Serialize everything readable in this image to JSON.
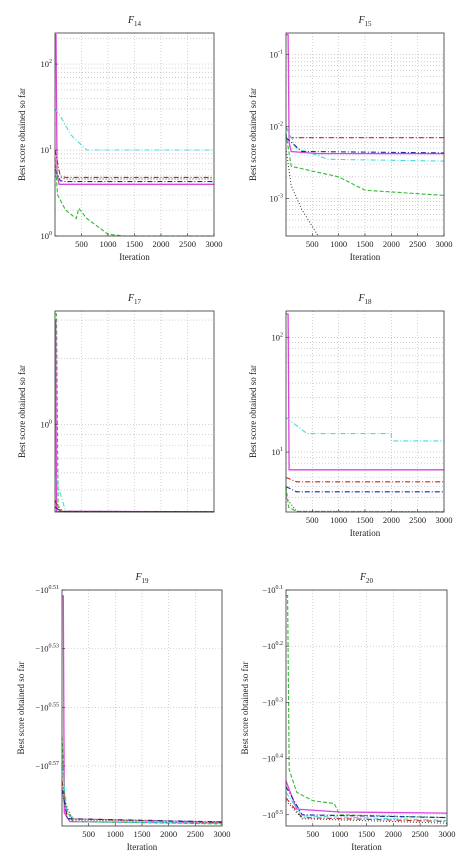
{
  "chart_data": [
    {
      "id": "f14",
      "type": "line",
      "title_main": "F",
      "title_sub": "14",
      "xlabel": "Iteration",
      "ylabel": "Best score obtained so far",
      "yscale": "log",
      "xlim": [
        1,
        3000
      ],
      "ylim": [
        1,
        230
      ],
      "grid": true,
      "xticks": [
        500,
        1000,
        1500,
        2000,
        2500,
        3000
      ],
      "yticks": [
        {
          "v": 1,
          "base": "10",
          "exp": "0"
        },
        {
          "v": 10,
          "base": "10",
          "exp": "1"
        },
        {
          "v": 100,
          "base": "10",
          "exp": "2"
        }
      ],
      "series": [
        {
          "color": "#dd44dd",
          "dash": "solid",
          "points": [
            [
              1,
              220
            ],
            [
              20,
              220
            ],
            [
              40,
              5
            ],
            [
              80,
              4.0
            ],
            [
              3000,
              4.0
            ]
          ]
        },
        {
          "color": "#44dddd",
          "dash": "dashdot",
          "points": [
            [
              1,
              30
            ],
            [
              100,
              25
            ],
            [
              300,
              15
            ],
            [
              600,
              10
            ],
            [
              3000,
              10
            ]
          ]
        },
        {
          "color": "#cc2222",
          "dash": "dashdot",
          "points": [
            [
              1,
              10
            ],
            [
              100,
              5
            ],
            [
              200,
              4.8
            ],
            [
              3000,
              4.8
            ]
          ]
        },
        {
          "color": "#2222aa",
          "dash": "dashdot",
          "points": [
            [
              1,
              6
            ],
            [
              100,
              4.4
            ],
            [
              200,
              4.3
            ],
            [
              3000,
              4.3
            ]
          ]
        },
        {
          "color": "#444444",
          "dash": "dotted",
          "points": [
            [
              1,
              5
            ],
            [
              200,
              4.6
            ],
            [
              3000,
              4.6
            ]
          ]
        },
        {
          "color": "#33bb33",
          "dash": "dashed",
          "points": [
            [
              1,
              8
            ],
            [
              50,
              3
            ],
            [
              200,
              2
            ],
            [
              400,
              1.6
            ],
            [
              450,
              2.1
            ],
            [
              600,
              1.6
            ],
            [
              1000,
              1.05
            ],
            [
              1300,
              1.0
            ],
            [
              3000,
              1.0
            ]
          ]
        }
      ]
    },
    {
      "id": "f15",
      "type": "line",
      "title_main": "F",
      "title_sub": "15",
      "xlabel": "Iteration",
      "ylabel": "Best score obtained so far",
      "yscale": "log",
      "xlim": [
        1,
        3000
      ],
      "ylim": [
        0.0003,
        0.2
      ],
      "grid": true,
      "xticks": [
        500,
        1000,
        1500,
        2000,
        2500,
        3000
      ],
      "yticks": [
        {
          "v": 0.001,
          "base": "10",
          "exp": "-3"
        },
        {
          "v": 0.01,
          "base": "10",
          "exp": "-2"
        },
        {
          "v": 0.1,
          "base": "10",
          "exp": "-1"
        }
      ],
      "series": [
        {
          "color": "#dd44dd",
          "dash": "solid",
          "points": [
            [
              1,
              0.19
            ],
            [
              40,
              0.19
            ],
            [
              60,
              0.006
            ],
            [
              100,
              0.0045
            ],
            [
              600,
              0.0042
            ],
            [
              3000,
              0.0042
            ]
          ]
        },
        {
          "color": "#cc2222",
          "dash": "dashdot",
          "points": [
            [
              1,
              0.01
            ],
            [
              100,
              0.007
            ],
            [
              3000,
              0.007
            ]
          ]
        },
        {
          "color": "#44dddd",
          "dash": "dashdot",
          "points": [
            [
              1,
              0.01
            ],
            [
              200,
              0.005
            ],
            [
              800,
              0.0035
            ],
            [
              3000,
              0.0033
            ]
          ]
        },
        {
          "color": "#2222aa",
          "dash": "dashdot",
          "points": [
            [
              1,
              0.007
            ],
            [
              300,
              0.0045
            ],
            [
              3000,
              0.0043
            ]
          ]
        },
        {
          "color": "#33bb33",
          "dash": "dashed",
          "points": [
            [
              1,
              0.008
            ],
            [
              100,
              0.0028
            ],
            [
              500,
              0.0024
            ],
            [
              1000,
              0.002
            ],
            [
              1500,
              0.0013
            ],
            [
              3000,
              0.0011
            ]
          ]
        },
        {
          "color": "#444444",
          "dash": "dotted",
          "points": [
            [
              1,
              0.005
            ],
            [
              100,
              0.0015
            ],
            [
              300,
              0.0007
            ],
            [
              600,
              0.00031
            ]
          ]
        }
      ]
    },
    {
      "id": "f17",
      "type": "line",
      "title_main": "F",
      "title_sub": "17",
      "xlabel": "",
      "ylabel": "Best score obtained so far",
      "yscale": "log",
      "xlim": [
        1,
        3000
      ],
      "ylim": [
        0.397,
        3.3
      ],
      "grid": true,
      "xticks": [],
      "yticks": [
        {
          "v": 1,
          "base": "10",
          "exp": "0"
        }
      ],
      "series": [
        {
          "color": "#33bb33",
          "dash": "dashed",
          "points": [
            [
              1,
              3.2
            ],
            [
              30,
              3.2
            ],
            [
              60,
              0.41
            ],
            [
              150,
              0.398
            ],
            [
              3000,
              0.398
            ]
          ]
        },
        {
          "color": "#dd44dd",
          "dash": "solid",
          "points": [
            [
              1,
              3.0
            ],
            [
              15,
              3.0
            ],
            [
              30,
              0.4
            ],
            [
              3000,
              0.398
            ]
          ]
        },
        {
          "color": "#44dddd",
          "dash": "dashdot",
          "points": [
            [
              1,
              0.6
            ],
            [
              60,
              0.52
            ],
            [
              200,
              0.4
            ],
            [
              3000,
              0.398
            ]
          ]
        },
        {
          "color": "#cc2222",
          "dash": "dashdot",
          "points": [
            [
              1,
              0.45
            ],
            [
              100,
              0.4
            ],
            [
              3000,
              0.398
            ]
          ]
        },
        {
          "color": "#2222aa",
          "dash": "dashdot",
          "points": [
            [
              1,
              0.42
            ],
            [
              100,
              0.399
            ],
            [
              3000,
              0.398
            ]
          ]
        },
        {
          "color": "#444444",
          "dash": "dotted",
          "points": [
            [
              1,
              0.44
            ],
            [
              150,
              0.399
            ],
            [
              3000,
              0.398
            ]
          ]
        }
      ]
    },
    {
      "id": "f18",
      "type": "line",
      "title_main": "F",
      "title_sub": "18",
      "xlabel": "Iteration",
      "ylabel": "Best score obtained so far",
      "yscale": "log",
      "xlim": [
        1,
        3000
      ],
      "ylim": [
        3,
        170
      ],
      "grid": true,
      "xticks": [
        500,
        1000,
        1500,
        2000,
        2500,
        3000
      ],
      "yticks": [
        {
          "v": 10,
          "base": "10",
          "exp": "1"
        },
        {
          "v": 100,
          "base": "10",
          "exp": "2"
        }
      ],
      "series": [
        {
          "color": "#dd44dd",
          "dash": "solid",
          "points": [
            [
              1,
              160
            ],
            [
              40,
              160
            ],
            [
              60,
              7.0
            ],
            [
              3000,
              7.0
            ]
          ]
        },
        {
          "color": "#44dddd",
          "dash": "dashdot",
          "points": [
            [
              1,
              20
            ],
            [
              200,
              17
            ],
            [
              400,
              14.5
            ],
            [
              2000,
              14.5
            ],
            [
              2000,
              12.5
            ],
            [
              3000,
              12.5
            ]
          ]
        },
        {
          "color": "#cc2222",
          "dash": "dashdot",
          "points": [
            [
              1,
              6
            ],
            [
              200,
              5.5
            ],
            [
              3000,
              5.5
            ]
          ]
        },
        {
          "color": "#2222aa",
          "dash": "dashdot",
          "points": [
            [
              1,
              5
            ],
            [
              200,
              4.5
            ],
            [
              3000,
              4.5
            ]
          ]
        },
        {
          "color": "#444444",
          "dash": "dotted",
          "points": [
            [
              1,
              4
            ],
            [
              200,
              3.05
            ],
            [
              3000,
              3.02
            ]
          ]
        },
        {
          "color": "#33bb33",
          "dash": "dashed",
          "points": [
            [
              1,
              5
            ],
            [
              50,
              3.3
            ],
            [
              200,
              3.03
            ],
            [
              3000,
              3.0
            ]
          ]
        }
      ]
    },
    {
      "id": "f19",
      "type": "line",
      "title_main": "F",
      "title_sub": "19",
      "xlabel": "Iteration",
      "ylabel": "Best score obtained so far",
      "yscale": "log-negative",
      "xlim": [
        1,
        3000
      ],
      "ylim": [
        0.51,
        0.5905
      ],
      "grid": true,
      "xticks": [
        500,
        1000,
        1500,
        2000,
        2500,
        3000
      ],
      "yticks": [
        {
          "v": 0.51,
          "base": "−10",
          "exp": "0.51"
        },
        {
          "v": 0.53,
          "base": "−10",
          "exp": "0.53"
        },
        {
          "v": 0.55,
          "base": "−10",
          "exp": "0.55"
        },
        {
          "v": 0.57,
          "base": "−10",
          "exp": "0.57"
        }
      ],
      "series": [
        {
          "color": "#dd44dd",
          "dash": "solid",
          "points": [
            [
              1,
              0.512
            ],
            [
              25,
              0.512
            ],
            [
              45,
              0.586
            ],
            [
              150,
              0.589
            ],
            [
              3000,
              0.5895
            ]
          ]
        },
        {
          "color": "#33bb33",
          "dash": "dashed",
          "points": [
            [
              1,
              0.56
            ],
            [
              60,
              0.584
            ],
            [
              200,
              0.589
            ],
            [
              3000,
              0.5898
            ]
          ]
        },
        {
          "color": "#44dddd",
          "dash": "dashdot",
          "points": [
            [
              1,
              0.57
            ],
            [
              100,
              0.586
            ],
            [
              300,
              0.589
            ],
            [
              3000,
              0.5895
            ]
          ]
        },
        {
          "color": "#cc2222",
          "dash": "dashdot",
          "points": [
            [
              1,
              0.575
            ],
            [
              100,
              0.588
            ],
            [
              3000,
              0.5893
            ]
          ]
        },
        {
          "color": "#2222aa",
          "dash": "dashdot",
          "points": [
            [
              1,
              0.578
            ],
            [
              100,
              0.588
            ],
            [
              3000,
              0.5891
            ]
          ]
        },
        {
          "color": "#444444",
          "dash": "dotted",
          "points": [
            [
              1,
              0.58
            ],
            [
              200,
              0.5885
            ],
            [
              3000,
              0.589
            ]
          ]
        }
      ]
    },
    {
      "id": "f20",
      "type": "line",
      "title_main": "F",
      "title_sub": "20",
      "xlabel": "Iteration",
      "ylabel": "Best score obtained so far",
      "yscale": "log-negative",
      "xlim": [
        1,
        3000
      ],
      "ylim": [
        0.1,
        0.52
      ],
      "grid": true,
      "xticks": [
        500,
        1000,
        1500,
        2000,
        2500,
        3000
      ],
      "yticks": [
        {
          "v": 0.1,
          "base": "−10",
          "exp": "0.1"
        },
        {
          "v": 0.2,
          "base": "−10",
          "exp": "0.2"
        },
        {
          "v": 0.3,
          "base": "−10",
          "exp": "0.3"
        },
        {
          "v": 0.4,
          "base": "−10",
          "exp": "0.4"
        },
        {
          "v": 0.5,
          "base": "−10",
          "exp": "0.5"
        }
      ],
      "series": [
        {
          "color": "#33bb33",
          "dash": "dashed",
          "points": [
            [
              1,
              0.11
            ],
            [
              30,
              0.11
            ],
            [
              60,
              0.42
            ],
            [
              200,
              0.46
            ],
            [
              500,
              0.475
            ],
            [
              900,
              0.48
            ],
            [
              1000,
              0.5
            ],
            [
              3000,
              0.505
            ]
          ]
        },
        {
          "color": "#dd44dd",
          "dash": "solid",
          "points": [
            [
              1,
              0.44
            ],
            [
              200,
              0.49
            ],
            [
              1000,
              0.495
            ],
            [
              3000,
              0.497
            ]
          ]
        },
        {
          "color": "#2222aa",
          "dash": "dashdot",
          "points": [
            [
              1,
              0.45
            ],
            [
              300,
              0.5
            ],
            [
              3000,
              0.505
            ]
          ]
        },
        {
          "color": "#44dddd",
          "dash": "dashdot",
          "points": [
            [
              1,
              0.46
            ],
            [
              300,
              0.502
            ],
            [
              3000,
              0.51
            ]
          ]
        },
        {
          "color": "#cc2222",
          "dash": "dashdot",
          "points": [
            [
              1,
              0.47
            ],
            [
              300,
              0.505
            ],
            [
              3000,
              0.512
            ]
          ]
        },
        {
          "color": "#444444",
          "dash": "dotted",
          "points": [
            [
              1,
              0.475
            ],
            [
              300,
              0.507
            ],
            [
              3000,
              0.515
            ]
          ]
        }
      ]
    }
  ]
}
